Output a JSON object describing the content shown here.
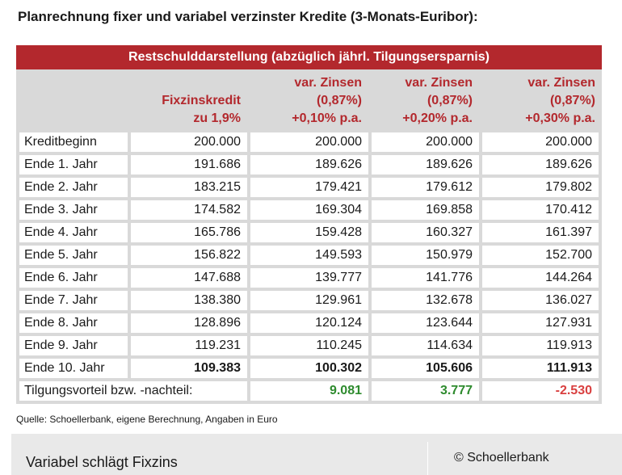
{
  "title": "Planrechnung fixer und variabel verzinster Kredite (3-Monats-Euribor):",
  "table": {
    "banner": "Restschulddarstellung (abzüglich jährl. Tilgungsersparnis)",
    "headers": [
      {
        "line1": "",
        "line2": "",
        "line3": ""
      },
      {
        "line1": "",
        "line2": "Fixzinskredit",
        "line3": "zu 1,9%"
      },
      {
        "line1": "var. Zinsen",
        "line2": "(0,87%)",
        "line3": "+0,10% p.a."
      },
      {
        "line1": "var. Zinsen",
        "line2": "(0,87%)",
        "line3": "+0,20% p.a."
      },
      {
        "line1": "var. Zinsen",
        "line2": "(0,87%)",
        "line3": "+0,30% p.a."
      }
    ],
    "rows": [
      {
        "label": "Kreditbeginn",
        "values": [
          "200.000",
          "200.000",
          "200.000",
          "200.000"
        ]
      },
      {
        "label": "Ende 1. Jahr",
        "values": [
          "191.686",
          "189.626",
          "189.626",
          "189.626"
        ]
      },
      {
        "label": "Ende 2. Jahr",
        "values": [
          "183.215",
          "179.421",
          "179.612",
          "179.802"
        ]
      },
      {
        "label": "Ende 3. Jahr",
        "values": [
          "174.582",
          "169.304",
          "169.858",
          "170.412"
        ]
      },
      {
        "label": "Ende 4. Jahr",
        "values": [
          "165.786",
          "159.428",
          "160.327",
          "161.397"
        ]
      },
      {
        "label": "Ende 5. Jahr",
        "values": [
          "156.822",
          "149.593",
          "150.979",
          "152.700"
        ]
      },
      {
        "label": "Ende 6. Jahr",
        "values": [
          "147.688",
          "139.777",
          "141.776",
          "144.264"
        ]
      },
      {
        "label": "Ende 7. Jahr",
        "values": [
          "138.380",
          "129.961",
          "132.678",
          "136.027"
        ]
      },
      {
        "label": "Ende 8. Jahr",
        "values": [
          "128.896",
          "120.124",
          "123.644",
          "127.931"
        ]
      },
      {
        "label": "Ende 9. Jahr",
        "values": [
          "119.231",
          "110.245",
          "114.634",
          "119.913"
        ]
      },
      {
        "label": "Ende 10. Jahr",
        "values": [
          "109.383",
          "100.302",
          "105.606",
          "111.913"
        ]
      }
    ],
    "advantage": {
      "label": "Tilgungsvorteil bzw. -nachteil:",
      "values": [
        "9.081",
        "3.777",
        "-2.530"
      ]
    }
  },
  "source": "Quelle: Schoellerbank, eigene Berechnung, Angaben in Euro",
  "caption": {
    "title": "Variabel schlägt Fixzins",
    "credit": "© Schoellerbank"
  },
  "colors": {
    "accent_red": "#b3282d",
    "positive_green": "#2e8b2e",
    "negative_red": "#d94040"
  }
}
